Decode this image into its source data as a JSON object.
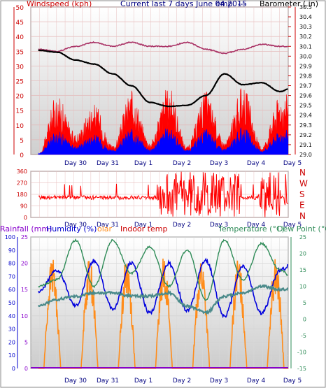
{
  "title": "Current last 7 days June 04 2015",
  "top_panel": {
    "ylabel_left": "Windspeed (kph)",
    "ylabel_right": "Barometer (.in)",
    "header_mid": "emp.  ---",
    "left_ticks": [
      0,
      5,
      10,
      15,
      20,
      25,
      30,
      35,
      40,
      45,
      50
    ],
    "right_ticks": [
      29.0,
      29.1,
      29.2,
      29.3,
      29.4,
      29.5,
      29.6,
      29.7,
      29.8,
      29.9,
      30.0,
      30.1,
      30.2,
      30.3,
      30.4,
      30.5
    ],
    "x_labels": [
      "Day 30",
      "Day 31",
      "Day 1",
      "Day 2",
      "Day 3",
      "Day 4",
      "Day 5"
    ]
  },
  "mid_panel": {
    "left_ticks": [
      0,
      90,
      180,
      270,
      360
    ],
    "direction_labels": [
      "N",
      "W",
      "S",
      "E",
      "N"
    ],
    "x_labels": [
      "Day 30",
      "Day 31",
      "Day 1",
      "Day 2",
      "Day 3",
      "Day 4",
      "Day 5"
    ]
  },
  "bottom_panel": {
    "legend": {
      "rainfall": "Rainfall (mm)",
      "humidity": "Humidity (%)",
      "solar": "olar",
      "indoor": "Indoor temp",
      "temperature": "Temperature (°C)",
      "dewpoint": "Dew Point (°C)"
    },
    "rain_ticks": [
      0,
      5,
      10,
      15,
      20,
      25
    ],
    "humidity_ticks": [
      0,
      10,
      20,
      30,
      40,
      50,
      60,
      70,
      80,
      90,
      100
    ],
    "temp_ticks": [
      -15,
      -10,
      -5,
      0,
      5,
      10,
      15,
      20,
      25
    ],
    "x_labels": [
      "Day 30",
      "Day 31",
      "Day 1",
      "Day 2",
      "Day 3",
      "Day 4",
      "Day 5"
    ]
  },
  "colors": {
    "wind_gust": "#ff0000",
    "wind_avg": "#0000ff",
    "barometer": "#000000",
    "temp_top": "#aa3366",
    "wind_dir": "#ff0000",
    "humidity": "#0000dd",
    "solar": "#ff8c1a",
    "temperature": "#2e8b57",
    "dewpoint": "#4a8a8a",
    "rainfall": "#8800cc"
  },
  "chart_data": [
    {
      "type": "line",
      "name": "wind and barometer",
      "x": [
        0,
        0.5,
        1,
        1.5,
        2,
        2.5,
        3,
        3.5,
        4,
        4.5,
        5,
        5.5,
        6,
        6.5,
        7
      ],
      "series": [
        {
          "name": "Barometer",
          "values": [
            30.06,
            30.04,
            29.96,
            29.92,
            29.82,
            29.7,
            29.53,
            29.49,
            29.5,
            29.6,
            29.82,
            29.71,
            29.73,
            29.64,
            29.73
          ]
        },
        {
          "name": "Temp",
          "values": [
            30.07,
            30.05,
            30.1,
            30.14,
            30.1,
            30.14,
            30.1,
            30.1,
            30.14,
            30.07,
            30.03,
            30.07,
            30.12,
            30.1,
            30.1
          ]
        },
        {
          "name": "Gust peaks",
          "values": [
            0,
            14,
            5,
            12,
            2,
            15,
            3,
            16,
            2,
            15,
            3,
            16,
            2,
            14,
            16
          ]
        }
      ],
      "ylim_left": [
        0,
        50
      ],
      "ylim_right": [
        29.0,
        30.5
      ]
    },
    {
      "type": "scatter",
      "name": "wind direction",
      "ylim": [
        0,
        360
      ]
    },
    {
      "type": "line",
      "name": "climate",
      "x": [
        0,
        0.5,
        1,
        1.5,
        2,
        2.5,
        3,
        3.5,
        4,
        4.5,
        5,
        5.5,
        6,
        6.5,
        7
      ],
      "series": [
        {
          "name": "Humidity",
          "values": [
            58,
            75,
            48,
            82,
            45,
            80,
            42,
            80,
            44,
            82,
            40,
            78,
            42,
            75,
            85
          ]
        },
        {
          "name": "Temperature",
          "values": [
            10,
            12,
            24,
            10,
            24,
            14,
            22,
            10,
            21,
            6,
            24,
            12,
            23,
            15,
            10
          ]
        },
        {
          "name": "Dew Point",
          "values": [
            4,
            6,
            7,
            8,
            8,
            7,
            7,
            8,
            4,
            2,
            7,
            8,
            10,
            9,
            10
          ]
        }
      ],
      "ylim_humidity": [
        0,
        100
      ],
      "ylim_temp": [
        -15,
        25
      ],
      "ylim_rain": [
        0,
        25
      ]
    }
  ]
}
